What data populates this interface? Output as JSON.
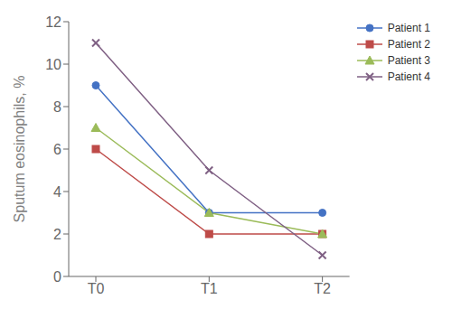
{
  "chart_data": {
    "type": "line",
    "categories": [
      "T0",
      "T1",
      "T2"
    ],
    "series": [
      {
        "name": "Patient 1",
        "color": "#4472C4",
        "marker": "circle",
        "values": [
          9,
          3,
          3
        ]
      },
      {
        "name": "Patient 2",
        "color": "#BE4B48",
        "marker": "square",
        "values": [
          6,
          2,
          2
        ]
      },
      {
        "name": "Patient 3",
        "color": "#9BBB59",
        "marker": "triangle",
        "values": [
          7,
          3,
          2
        ]
      },
      {
        "name": "Patient 4",
        "color": "#7F6084",
        "marker": "x",
        "values": [
          11,
          5,
          1
        ]
      }
    ],
    "ylabel": "Sputum eosinophils, %",
    "ylim": [
      0,
      12
    ],
    "yticks": [
      0,
      2,
      4,
      6,
      8,
      10,
      12
    ],
    "grid": false,
    "legend": "upper right"
  }
}
